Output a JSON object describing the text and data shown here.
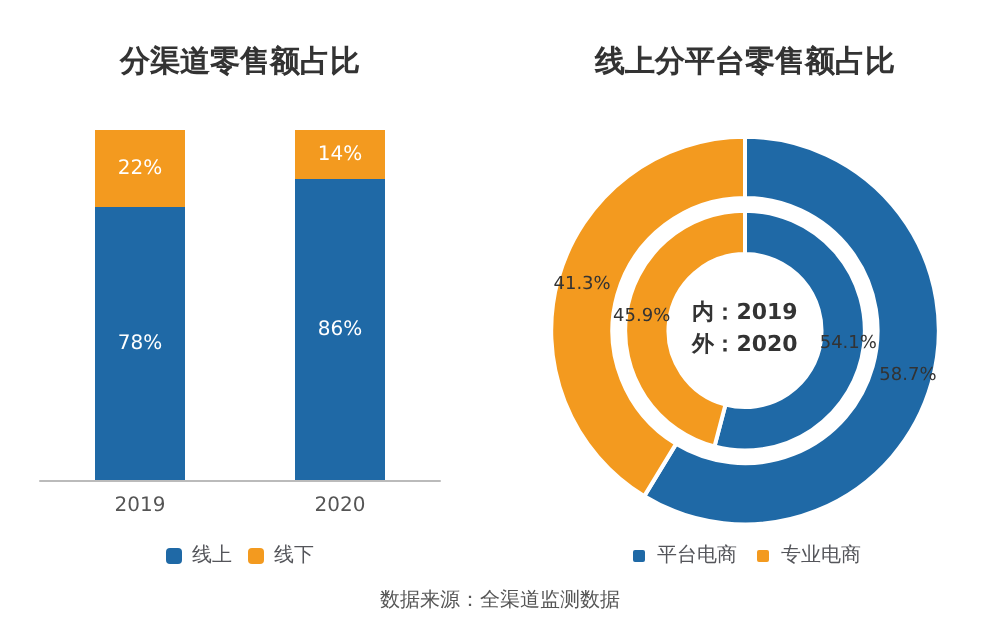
{
  "chart_data": [
    {
      "type": "bar",
      "title": "分渠道零售额占比",
      "categories": [
        "2019",
        "2020"
      ],
      "stacked": true,
      "legend": "bottom",
      "annotations": [
        "数据来源：全渠道监测数据"
      ],
      "series": [
        {
          "name": "线上",
          "color": "#1f69a6",
          "values": [
            78,
            86
          ],
          "value_labels": [
            "78%",
            "86%"
          ]
        },
        {
          "name": "线下",
          "color": "#f39a1f",
          "values": [
            22,
            14
          ],
          "value_labels": [
            "22%",
            "14%"
          ]
        }
      ]
    },
    {
      "type": "donut",
      "title": "线上分平台零售额占比",
      "categories": [
        "平台电商",
        "专业电商"
      ],
      "colors": [
        "#1f69a6",
        "#f39a1f"
      ],
      "legend": "bottom",
      "annotations": [
        "内：2019\n外：2020"
      ],
      "series": [
        {
          "values": [
            54.1,
            45.9
          ],
          "value_labels": [
            "54.1%",
            "45.9%"
          ]
        },
        {
          "values": [
            58.7,
            41.3
          ],
          "value_labels": [
            "58.7%",
            "41.3%"
          ]
        }
      ]
    }
  ]
}
